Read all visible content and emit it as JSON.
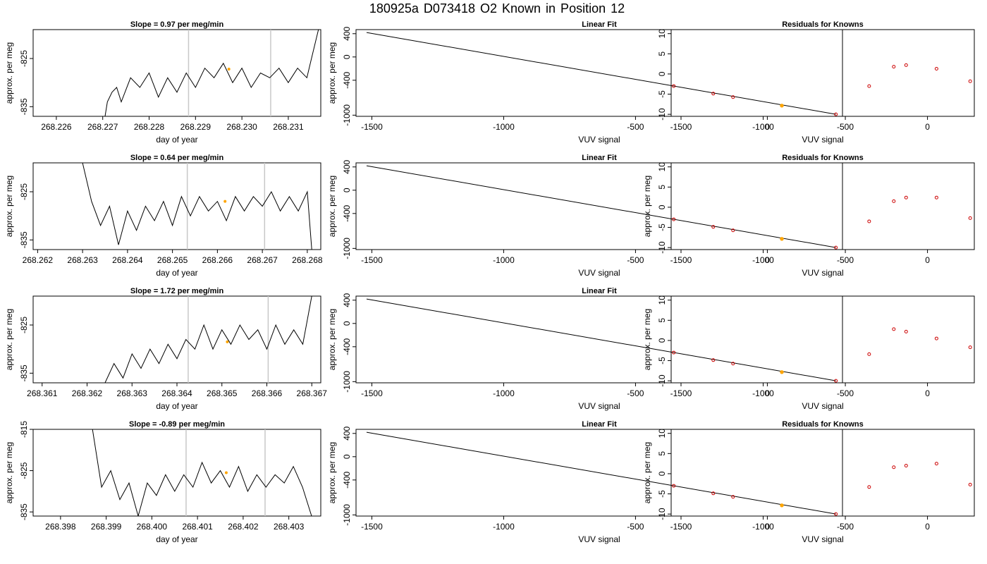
{
  "title": "180925a     D073418   O2 Known in Position  12",
  "colors": {
    "line": "#000000",
    "vline": "#c8c8c8",
    "highlight": "#ffa500",
    "residual": "#cc0000"
  },
  "chart_data": [
    {
      "type": "line",
      "row": 1,
      "panel": "timeseries",
      "title": "Slope =  0.97  per meg/min",
      "xlabel": "day of year",
      "ylabel": "approx. per meg",
      "xlim": [
        268.2255,
        268.2317
      ],
      "ylim": [
        -837,
        -819
      ],
      "xticks": [
        "268.226",
        "268.227",
        "268.228",
        "268.229",
        "268.230",
        "268.231"
      ],
      "yticks": [
        "-825",
        "-835"
      ],
      "series": [
        {
          "x": [
            268.22705,
            268.2271,
            268.2272,
            268.2273,
            268.2274,
            268.2276,
            268.2278,
            268.228,
            268.2282,
            268.2284,
            268.2286,
            268.2288,
            268.229,
            268.2292,
            268.2294,
            268.2296,
            268.2298,
            268.23,
            268.2302,
            268.2304,
            268.2306,
            268.2308,
            268.231,
            268.2312,
            268.2314,
            268.2315,
            268.23165
          ],
          "y": [
            -837,
            -834,
            -832,
            -831,
            -834,
            -829,
            -831,
            -828,
            -833,
            -829,
            -832,
            -828,
            -831,
            -827,
            -829,
            -826,
            -830,
            -827,
            -831,
            -828,
            -829,
            -827,
            -830,
            -827,
            -829,
            -825,
            -819
          ]
        }
      ],
      "highlight": {
        "x": 268.22972,
        "y": -827.2
      },
      "vlines": [
        268.22885,
        268.23062
      ]
    },
    {
      "type": "scatter",
      "row": 1,
      "panel": "linear-fit",
      "title": "Linear Fit",
      "xlabel": "VUV signal",
      "ylabel": "approx. per meg",
      "xlim": [
        -1560,
        285
      ],
      "ylim": [
        -1020,
        470
      ],
      "xticks": [
        "-1500",
        "-1000",
        "-500",
        "0"
      ],
      "yticks": [
        "400",
        "0",
        "-400",
        "-1000"
      ],
      "fit": [
        [
          -1520,
          420
        ],
        [
          260,
          -985
        ]
      ],
      "points": [
        [
          -355,
          -500
        ],
        [
          -205,
          -630
        ],
        [
          -130,
          -690
        ],
        [
          260,
          -985
        ]
      ],
      "highlight_points": [
        [
          55,
          -836
        ]
      ]
    },
    {
      "type": "scatter",
      "row": 1,
      "panel": "residuals",
      "title": "Residuals for Knowns",
      "xlabel": "VUV signal",
      "ylabel": "",
      "xlim": [
        -1560,
        285
      ],
      "ylim": [
        -10.5,
        11
      ],
      "xticks": [
        "-1500",
        "-1000",
        "-500",
        "0"
      ],
      "yticks": [
        "10",
        "5",
        "0",
        "-5",
        "-10"
      ],
      "points": [
        [
          -355,
          -3.0
        ],
        [
          -205,
          1.8
        ],
        [
          -130,
          2.2
        ],
        [
          55,
          1.3
        ],
        [
          260,
          -1.8
        ]
      ]
    },
    {
      "type": "line",
      "row": 2,
      "panel": "timeseries",
      "title": "Slope =  0.64  per meg/min",
      "xlabel": "day of year",
      "ylabel": "approx. per meg",
      "xlim": [
        268.2619,
        268.2683
      ],
      "ylim": [
        -837,
        -819
      ],
      "xticks": [
        "268.262",
        "268.263",
        "268.264",
        "268.265",
        "268.266",
        "268.267",
        "268.268"
      ],
      "yticks": [
        "-825",
        "-835"
      ],
      "series": [
        {
          "x": [
            268.263,
            268.2632,
            268.2634,
            268.2636,
            268.2638,
            268.264,
            268.2642,
            268.2644,
            268.2646,
            268.2648,
            268.265,
            268.2652,
            268.2654,
            268.2656,
            268.2658,
            268.266,
            268.2662,
            268.2664,
            268.2666,
            268.2668,
            268.267,
            268.2672,
            268.2674,
            268.2676,
            268.2678,
            268.268,
            268.2681
          ],
          "y": [
            -819,
            -827,
            -832,
            -828,
            -836,
            -829,
            -833,
            -828,
            -831,
            -827,
            -832,
            -826,
            -830,
            -826,
            -829,
            -827,
            -831,
            -826,
            -829,
            -826,
            -828,
            -825,
            -829,
            -826,
            -829,
            -825,
            -837
          ]
        }
      ],
      "highlight": {
        "x": 268.26617,
        "y": -827.0
      },
      "vlines": [
        268.26533,
        268.26705
      ]
    },
    {
      "type": "scatter",
      "row": 2,
      "panel": "linear-fit",
      "title": "Linear Fit",
      "xlabel": "VUV signal",
      "ylabel": "approx. per meg",
      "xlim": [
        -1560,
        285
      ],
      "ylim": [
        -1020,
        470
      ],
      "xticks": [
        "-1500",
        "-1000",
        "-500",
        "0"
      ],
      "yticks": [
        "400",
        "0",
        "-400",
        "-1000"
      ],
      "fit": [
        [
          -1520,
          420
        ],
        [
          260,
          -985
        ]
      ],
      "points": [
        [
          -355,
          -500
        ],
        [
          -205,
          -630
        ],
        [
          -130,
          -690
        ],
        [
          260,
          -985
        ]
      ],
      "highlight_points": [
        [
          55,
          -836
        ]
      ]
    },
    {
      "type": "scatter",
      "row": 2,
      "panel": "residuals",
      "title": "Residuals for Knowns",
      "xlabel": "VUV signal",
      "ylabel": "approx. per meg",
      "xlim": [
        -1560,
        285
      ],
      "ylim": [
        -10.5,
        11
      ],
      "xticks": [
        "-1500",
        "-1000",
        "-500",
        "0"
      ],
      "yticks": [
        "10",
        "5",
        "0",
        "-5",
        "-10"
      ],
      "points": [
        [
          -355,
          -3.5
        ],
        [
          -205,
          1.5
        ],
        [
          -130,
          2.4
        ],
        [
          55,
          2.4
        ],
        [
          260,
          -2.7
        ]
      ]
    },
    {
      "type": "line",
      "row": 3,
      "panel": "timeseries",
      "title": "Slope =  1.72  per meg/min",
      "xlabel": "day of year",
      "ylabel": "approx. per meg",
      "xlim": [
        268.3608,
        268.3672
      ],
      "ylim": [
        -837,
        -819
      ],
      "xticks": [
        "268.361",
        "268.362",
        "268.363",
        "268.364",
        "268.365",
        "268.366",
        "268.367"
      ],
      "yticks": [
        "-825",
        "-835"
      ],
      "series": [
        {
          "x": [
            268.3624,
            268.3626,
            268.3628,
            268.363,
            268.3632,
            268.3634,
            268.3636,
            268.3638,
            268.364,
            268.3642,
            268.3644,
            268.3646,
            268.3648,
            268.365,
            268.3652,
            268.3654,
            268.3656,
            268.3658,
            268.366,
            268.3662,
            268.3664,
            268.3666,
            268.3668,
            268.367
          ],
          "y": [
            -837,
            -833,
            -836,
            -831,
            -834,
            -830,
            -833,
            -829,
            -832,
            -828,
            -830,
            -825,
            -830,
            -826,
            -829,
            -825,
            -828,
            -826,
            -830,
            -825,
            -829,
            -826,
            -829,
            -819
          ]
        }
      ],
      "highlight": {
        "x": 268.36512,
        "y": -828.5
      },
      "vlines": [
        268.36425,
        268.36603
      ]
    },
    {
      "type": "scatter",
      "row": 3,
      "panel": "linear-fit",
      "title": "Linear Fit",
      "xlabel": "VUV signal",
      "ylabel": "approx. per meg",
      "xlim": [
        -1560,
        285
      ],
      "ylim": [
        -1020,
        470
      ],
      "xticks": [
        "-1500",
        "-1000",
        "-500",
        "0"
      ],
      "yticks": [
        "400",
        "0",
        "-400",
        "-1000"
      ],
      "fit": [
        [
          -1520,
          420
        ],
        [
          260,
          -985
        ]
      ],
      "points": [
        [
          -355,
          -500
        ],
        [
          -205,
          -630
        ],
        [
          -130,
          -690
        ],
        [
          260,
          -985
        ]
      ],
      "highlight_points": [
        [
          55,
          -836
        ]
      ]
    },
    {
      "type": "scatter",
      "row": 3,
      "panel": "residuals",
      "title": "",
      "xlabel": "VUV signal",
      "ylabel": "approx. per meg",
      "xlim": [
        -1560,
        285
      ],
      "ylim": [
        -10.5,
        11
      ],
      "xticks": [
        "-1500",
        "-1000",
        "-500",
        "0"
      ],
      "yticks": [
        "10",
        "5",
        "0",
        "-5",
        "-10"
      ],
      "points": [
        [
          -355,
          -3.4
        ],
        [
          -205,
          2.8
        ],
        [
          -130,
          2.2
        ],
        [
          55,
          0.5
        ],
        [
          260,
          -1.7
        ]
      ]
    },
    {
      "type": "line",
      "row": 4,
      "panel": "timeseries",
      "title": "Slope =  -0.89  per meg/min",
      "xlabel": "day of year",
      "ylabel": "approx. per meg",
      "xlim": [
        268.3974,
        268.4037
      ],
      "ylim": [
        -836,
        -815
      ],
      "xticks": [
        "268.398",
        "268.399",
        "268.400",
        "268.401",
        "268.402",
        "268.403"
      ],
      "yticks": [
        "-815",
        "-825",
        "-835"
      ],
      "series": [
        {
          "x": [
            268.3987,
            268.3989,
            268.3991,
            268.3993,
            268.3995,
            268.3997,
            268.3999,
            268.4001,
            268.4003,
            268.4005,
            268.4007,
            268.4009,
            268.4011,
            268.4013,
            268.4015,
            268.4017,
            268.4019,
            268.4021,
            268.4023,
            268.4025,
            268.4027,
            268.4029,
            268.4031,
            268.4033,
            268.4035
          ],
          "y": [
            -815,
            -829,
            -825,
            -832,
            -828,
            -836,
            -828,
            -831,
            -826,
            -830,
            -826,
            -829,
            -823,
            -828,
            -825,
            -829,
            -824,
            -830,
            -826,
            -829,
            -826,
            -828,
            -824,
            -829,
            -836
          ]
        }
      ],
      "highlight": {
        "x": 268.40163,
        "y": -825.5
      },
      "vlines": [
        268.40075,
        268.40248
      ]
    },
    {
      "type": "scatter",
      "row": 4,
      "panel": "linear-fit",
      "title": "Linear Fit",
      "xlabel": "VUV signal",
      "ylabel": "approx. per meg",
      "xlim": [
        -1560,
        285
      ],
      "ylim": [
        -1020,
        470
      ],
      "xticks": [
        "-1500",
        "-1000",
        "-500",
        "0"
      ],
      "yticks": [
        "400",
        "0",
        "-400",
        "-1000"
      ],
      "fit": [
        [
          -1520,
          420
        ],
        [
          260,
          -985
        ]
      ],
      "points": [
        [
          -355,
          -500
        ],
        [
          -205,
          -630
        ],
        [
          -130,
          -690
        ],
        [
          260,
          -985
        ]
      ],
      "highlight_points": [
        [
          55,
          -836
        ]
      ]
    },
    {
      "type": "scatter",
      "row": 4,
      "panel": "residuals",
      "title": "Residuals for Knowns",
      "xlabel": "VUV signal",
      "ylabel": "approx. per meg",
      "xlim": [
        -1560,
        285
      ],
      "ylim": [
        -10.5,
        11
      ],
      "xticks": [
        "-1500",
        "-1000",
        "-500",
        "0"
      ],
      "yticks": [
        "10",
        "5",
        "0",
        "-5",
        "-10"
      ],
      "points": [
        [
          -355,
          -3.3
        ],
        [
          -205,
          1.6
        ],
        [
          -130,
          2.0
        ],
        [
          55,
          2.5
        ],
        [
          260,
          -2.7
        ]
      ]
    }
  ]
}
